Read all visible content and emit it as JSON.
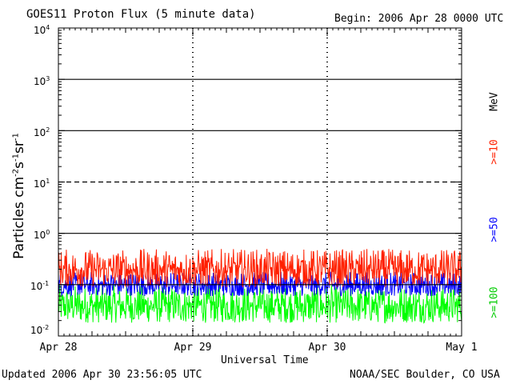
{
  "chart_data": {
    "type": "line",
    "title": "GOES11 Proton Flux (5 minute data)",
    "begin": "Begin: 2006 Apr 28 0000 UTC",
    "xlabel": "Universal Time",
    "ylabel_base": "Particles cm",
    "ylabel_parts": [
      "-2",
      "s",
      "-1",
      "sr",
      "-1"
    ],
    "x_ticks": [
      "Apr 28",
      "Apr 29",
      "Apr 30",
      "May 1"
    ],
    "x_range_days": [
      0,
      3
    ],
    "y_scale": "log",
    "ylim": [
      0.01,
      10000
    ],
    "y_ticks": [
      {
        "base": "10",
        "exp": "4"
      },
      {
        "base": "10",
        "exp": "3"
      },
      {
        "base": "10",
        "exp": "2"
      },
      {
        "base": "10",
        "exp": "1"
      },
      {
        "base": "10",
        "exp": "0"
      },
      {
        "base": "10",
        "exp": "-1"
      },
      {
        "base": "10",
        "exp": "-2"
      }
    ],
    "threshold_lines": [
      {
        "value": 1000,
        "style": "solid"
      },
      {
        "value": 100,
        "style": "solid"
      },
      {
        "value": 10,
        "style": "dashed"
      },
      {
        "value": 1,
        "style": "solid"
      },
      {
        "value": 0.1,
        "style": "solid"
      }
    ],
    "series": [
      {
        "name": ">=10",
        "color": "#ff2000",
        "range": [
          0.09,
          0.5
        ],
        "typical": 0.2
      },
      {
        "name": ">=50",
        "color": "#0000ff",
        "range": [
          0.06,
          0.18
        ],
        "typical": 0.1
      },
      {
        "name": ">=100",
        "color": "#00ff00",
        "range": [
          0.018,
          0.1
        ],
        "typical": 0.04
      }
    ],
    "unit_label": "MeV"
  },
  "footer": {
    "updated": "Updated 2006 Apr 30 23:56:05 UTC",
    "credit": "NOAA/SEC Boulder, CO USA"
  }
}
